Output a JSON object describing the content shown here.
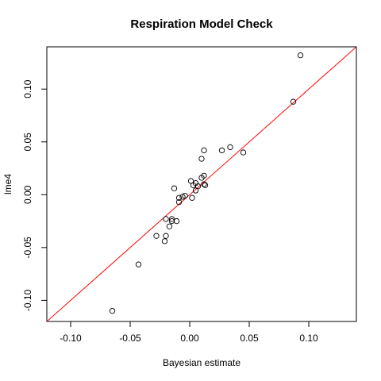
{
  "chart_data": {
    "type": "scatter",
    "title": "Respiration Model Check",
    "xlabel": "Bayesian estimate",
    "ylabel": "lme4",
    "xlim": [
      -0.12,
      0.14
    ],
    "ylim": [
      -0.12,
      0.14
    ],
    "x_ticks": [
      -0.1,
      -0.05,
      0.0,
      0.05,
      0.1
    ],
    "x_tick_labels": [
      "-0.10",
      "-0.05",
      "0.00",
      "0.05",
      "0.10"
    ],
    "y_ticks": [
      -0.1,
      -0.05,
      0.0,
      0.05,
      0.1
    ],
    "y_tick_labels": [
      "-0.10",
      "-0.05",
      "0.00",
      "0.05",
      "0.10"
    ],
    "grid": false,
    "reference_line": {
      "slope": 1,
      "intercept": 0,
      "color": "#ff0000"
    },
    "point_color": "#000000",
    "points": [
      {
        "x": 0.093,
        "y": 0.132
      },
      {
        "x": 0.087,
        "y": 0.088
      },
      {
        "x": 0.045,
        "y": 0.04
      },
      {
        "x": 0.034,
        "y": 0.045
      },
      {
        "x": 0.027,
        "y": 0.042
      },
      {
        "x": 0.012,
        "y": 0.042
      },
      {
        "x": 0.01,
        "y": 0.034
      },
      {
        "x": 0.012,
        "y": 0.018
      },
      {
        "x": 0.01,
        "y": 0.016
      },
      {
        "x": 0.001,
        "y": 0.013
      },
      {
        "x": 0.005,
        "y": 0.011
      },
      {
        "x": 0.003,
        "y": 0.009
      },
      {
        "x": 0.007,
        "y": 0.008
      },
      {
        "x": 0.012,
        "y": 0.01
      },
      {
        "x": 0.013,
        "y": 0.009
      },
      {
        "x": 0.005,
        "y": 0.004
      },
      {
        "x": -0.013,
        "y": 0.006
      },
      {
        "x": -0.004,
        "y": -0.001
      },
      {
        "x": -0.006,
        "y": -0.002
      },
      {
        "x": -0.009,
        "y": -0.003
      },
      {
        "x": 0.002,
        "y": -0.003
      },
      {
        "x": -0.009,
        "y": -0.007
      },
      {
        "x": -0.02,
        "y": -0.023
      },
      {
        "x": -0.015,
        "y": -0.023
      },
      {
        "x": -0.015,
        "y": -0.025
      },
      {
        "x": -0.011,
        "y": -0.025
      },
      {
        "x": -0.017,
        "y": -0.03
      },
      {
        "x": -0.02,
        "y": -0.039
      },
      {
        "x": -0.028,
        "y": -0.039
      },
      {
        "x": -0.021,
        "y": -0.044
      },
      {
        "x": -0.043,
        "y": -0.066
      },
      {
        "x": -0.065,
        "y": -0.11
      }
    ]
  }
}
